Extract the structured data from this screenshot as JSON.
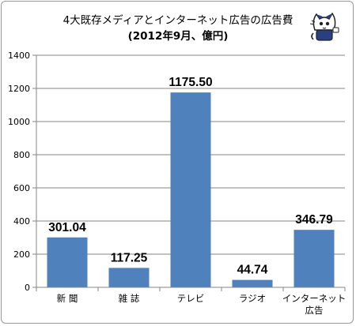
{
  "chart_data": {
    "type": "bar",
    "title": "4大既存メディアとインターネット広告の広告費",
    "subtitle": "(2012年9月、億円)",
    "categories": [
      [
        "新 聞"
      ],
      [
        "雑 誌"
      ],
      [
        "テレビ"
      ],
      [
        "ラジオ"
      ],
      [
        "インターネット",
        "広告"
      ]
    ],
    "values": [
      301.04,
      117.25,
      1175.5,
      44.74,
      346.79
    ],
    "data_labels": [
      "301.04",
      "117.25",
      "1175.50",
      "44.74",
      "346.79"
    ],
    "ylim": [
      0,
      1400
    ],
    "yticks": [
      0,
      200,
      400,
      600,
      800,
      1000,
      1200,
      1400
    ],
    "grid": true,
    "bar_color": "#4f81bd",
    "gridline_color": "#858585"
  },
  "decoration": {
    "icon": "cat-mascot-icon"
  }
}
